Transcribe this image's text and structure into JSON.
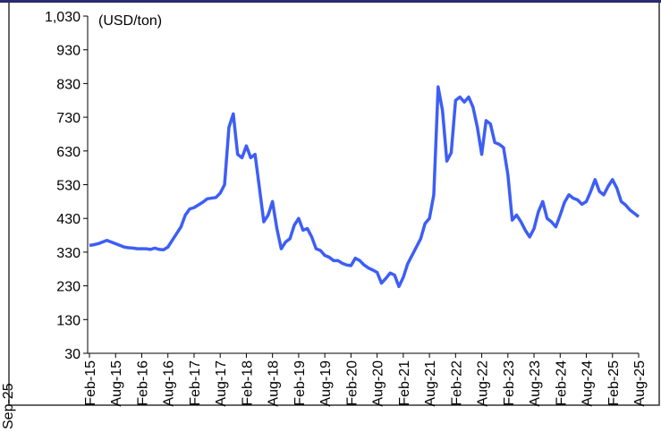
{
  "chart_data": {
    "type": "line",
    "annotations": [
      "(USD/ton)",
      "Sep-25"
    ],
    "categories": [
      "Feb-15",
      null,
      null,
      null,
      null,
      null,
      "Aug-15",
      null,
      null,
      null,
      null,
      null,
      "Feb-16",
      null,
      null,
      null,
      null,
      null,
      "Aug-16",
      null,
      null,
      null,
      null,
      null,
      "Feb-17",
      null,
      null,
      null,
      null,
      null,
      "Aug-17",
      null,
      null,
      null,
      null,
      null,
      "Feb-18",
      null,
      null,
      null,
      null,
      null,
      "Aug-18",
      null,
      null,
      null,
      null,
      null,
      "Feb-19",
      null,
      null,
      null,
      null,
      null,
      "Aug-19",
      null,
      null,
      null,
      null,
      null,
      "Feb-20",
      null,
      null,
      null,
      null,
      null,
      "Aug-20",
      null,
      null,
      null,
      null,
      null,
      "Feb-21",
      null,
      null,
      null,
      null,
      null,
      "Aug-21",
      null,
      null,
      null,
      null,
      null,
      "Feb-22",
      null,
      null,
      null,
      null,
      null,
      "Aug-22",
      null,
      null,
      null,
      null,
      null,
      "Feb-23",
      null,
      null,
      null,
      null,
      null,
      "Aug-23",
      null,
      null,
      null,
      null,
      null,
      "Feb-24",
      null,
      null,
      null,
      null,
      null,
      "Aug-24",
      null,
      null,
      null,
      null,
      null,
      "Feb-25",
      null,
      null,
      null,
      null,
      null,
      "Aug-25"
    ],
    "series": [
      {
        "color": "#3d5ef5",
        "values": [
          350,
          352,
          355,
          360,
          365,
          360,
          355,
          350,
          345,
          343,
          342,
          340,
          340,
          340,
          338,
          342,
          338,
          337,
          345,
          365,
          385,
          405,
          440,
          458,
          462,
          470,
          478,
          488,
          490,
          492,
          505,
          530,
          700,
          740,
          620,
          610,
          645,
          610,
          620,
          520,
          420,
          440,
          480,
          400,
          340,
          360,
          370,
          410,
          430,
          395,
          400,
          375,
          340,
          335,
          320,
          315,
          305,
          305,
          297,
          292,
          290,
          312,
          305,
          292,
          283,
          277,
          270,
          238,
          252,
          268,
          262,
          228,
          255,
          295,
          320,
          345,
          370,
          415,
          430,
          500,
          820,
          750,
          600,
          625,
          780,
          790,
          775,
          790,
          760,
          700,
          620,
          720,
          710,
          655,
          650,
          640,
          560,
          425,
          440,
          420,
          395,
          375,
          400,
          450,
          480,
          430,
          420,
          405,
          440,
          478,
          500,
          490,
          485,
          472,
          480,
          510,
          545,
          510,
          500,
          525,
          545,
          520,
          480,
          470,
          455,
          445,
          435
        ]
      }
    ],
    "ylim": [
      30,
      1030
    ],
    "yticks": [
      30,
      130,
      230,
      330,
      430,
      530,
      630,
      730,
      830,
      930,
      {
        "value": 1030,
        "label": "1,030"
      }
    ]
  }
}
